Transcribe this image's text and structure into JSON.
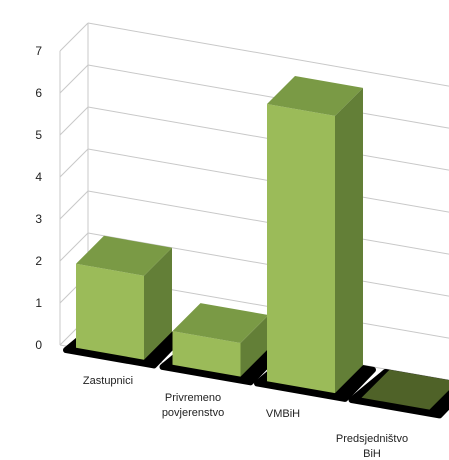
{
  "chart_data": {
    "type": "bar",
    "categories": [
      "Zastupnici",
      "Privremeno povjerenstvo",
      "VMBiH",
      "Predsjedništvo BiH"
    ],
    "category_lines": [
      [
        "Zastupnici"
      ],
      [
        "Privremeno",
        "povjerenstvo"
      ],
      [
        "VMBiH"
      ],
      [
        "Predsjedništvo",
        "BiH"
      ]
    ],
    "values": [
      2,
      0.8,
      6.6,
      0
    ],
    "ylim": [
      0,
      7
    ],
    "yticks": [
      0,
      1,
      2,
      3,
      4,
      5,
      6,
      7
    ],
    "grid": true,
    "legend": "none",
    "colors": {
      "bar_front": "#9bbb59",
      "bar_top": "#7a9a45",
      "bar_side": "#637f37",
      "shadow": "#000000",
      "zero_bar": "#4f6228",
      "grid": "#c8c8c8"
    }
  }
}
